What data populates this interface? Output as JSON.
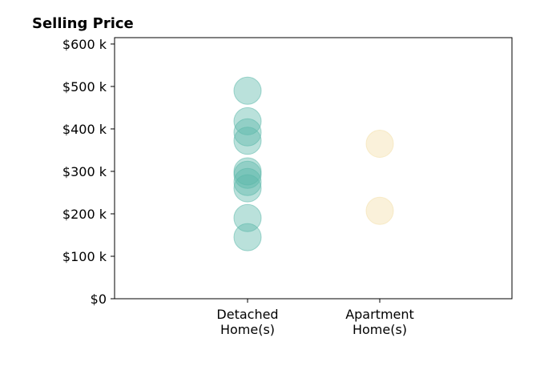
{
  "chart_data": {
    "type": "scatter",
    "title": "Selling Price",
    "xlabel": "",
    "ylabel": "",
    "categories": [
      [
        "Detached",
        "Home(s)"
      ],
      [
        "Apartment",
        "Home(s)"
      ]
    ],
    "ylim": [
      0,
      615000
    ],
    "yticks": [
      0,
      100000,
      200000,
      300000,
      400000,
      500000,
      600000
    ],
    "ytick_labels": [
      "$0",
      "$100 k",
      "$200 k",
      "$300 k",
      "$400 k",
      "$500 k",
      "$600 k"
    ],
    "grid": false,
    "series": [
      {
        "category_index": 0,
        "color": "#5bb8a9",
        "values": [
          490000,
          418000,
          392000,
          372000,
          300000,
          292000,
          275000,
          260000,
          190000,
          145000
        ]
      },
      {
        "category_index": 1,
        "color": "#f2dea8",
        "values": [
          365000,
          207000
        ]
      }
    ]
  }
}
